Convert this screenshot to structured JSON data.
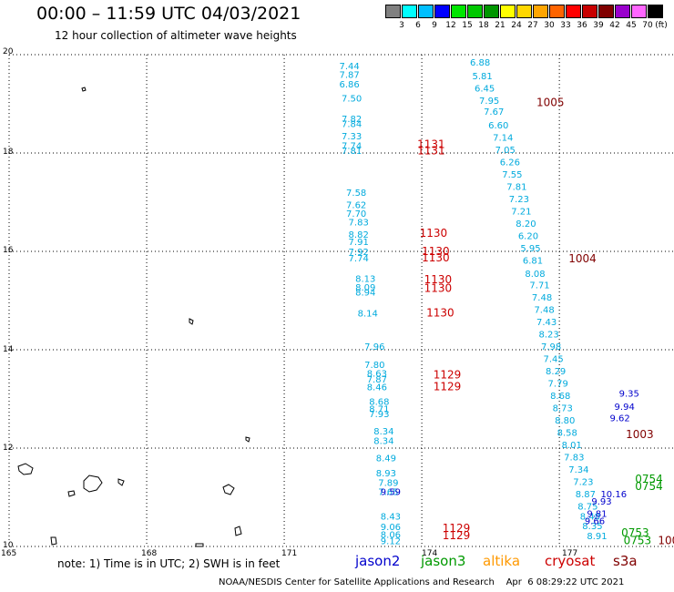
{
  "title": "00:00 – 11:59 UTC 04/03/2021",
  "subtitle": "12 hour collection of altimeter wave heights",
  "legend": {
    "unit": "(ft)",
    "bins": [
      {
        "label": "",
        "color": "#808080"
      },
      {
        "label": "3",
        "color": "#00ffff"
      },
      {
        "label": "6",
        "color": "#00bfff"
      },
      {
        "label": "9",
        "color": "#0000ff"
      },
      {
        "label": "12",
        "color": "#00e600"
      },
      {
        "label": "15",
        "color": "#00c800"
      },
      {
        "label": "18",
        "color": "#009600"
      },
      {
        "label": "21",
        "color": "#ffff00"
      },
      {
        "label": "24",
        "color": "#ffd700"
      },
      {
        "label": "27",
        "color": "#ffa500"
      },
      {
        "label": "30",
        "color": "#ff6400"
      },
      {
        "label": "33",
        "color": "#ff0000"
      },
      {
        "label": "36",
        "color": "#c80000"
      },
      {
        "label": "39",
        "color": "#800000"
      },
      {
        "label": "42",
        "color": "#9900cc"
      },
      {
        "label": "45",
        "color": "#ff66ff"
      },
      {
        "label": "70",
        "color": "#000000"
      }
    ]
  },
  "axes": {
    "lat_labels": [
      "20",
      "18",
      "16",
      "14",
      "12",
      "10"
    ],
    "lon_labels": [
      "165",
      "168",
      "171",
      "174",
      "177"
    ],
    "lat_range": [
      10,
      20
    ],
    "lon_range": [
      165,
      179.5
    ]
  },
  "colors": {
    "jason2": "#0000cc",
    "jason3": "#009900",
    "altika": "#ff9900",
    "cryosat": "#cc0000",
    "s3a": "#800000",
    "swh": "#00aadd"
  },
  "tracks": [
    {
      "id": "track-a",
      "color": "#00aadd",
      "points": [
        {
          "lon": 172.2,
          "lat": 19.7,
          "swh": "7.44"
        },
        {
          "lon": 172.2,
          "lat": 19.53,
          "swh": "7.87"
        },
        {
          "lon": 172.2,
          "lat": 19.33,
          "swh": "6.86"
        },
        {
          "lon": 172.25,
          "lat": 19.05,
          "swh": "7.50"
        },
        {
          "lon": 172.25,
          "lat": 18.63,
          "swh": "7.82"
        },
        {
          "lon": 172.25,
          "lat": 18.53,
          "swh": "7.84"
        },
        {
          "lon": 172.25,
          "lat": 18.28,
          "swh": "7.33"
        },
        {
          "lon": 172.25,
          "lat": 18.08,
          "swh": "7.74"
        },
        {
          "lon": 172.25,
          "lat": 17.98,
          "swh": "7.81"
        },
        {
          "lon": 172.35,
          "lat": 17.13,
          "swh": "7.58"
        },
        {
          "lon": 172.35,
          "lat": 16.88,
          "swh": "7.62"
        },
        {
          "lon": 172.35,
          "lat": 16.7,
          "swh": "7.70"
        },
        {
          "lon": 172.4,
          "lat": 16.53,
          "swh": "7.83"
        },
        {
          "lon": 172.4,
          "lat": 16.28,
          "swh": "8.82"
        },
        {
          "lon": 172.4,
          "lat": 16.13,
          "swh": "7.91"
        },
        {
          "lon": 172.4,
          "lat": 15.93,
          "swh": "7.92"
        },
        {
          "lon": 172.4,
          "lat": 15.8,
          "swh": "7.74"
        },
        {
          "lon": 172.55,
          "lat": 15.38,
          "swh": "8.13"
        },
        {
          "lon": 172.55,
          "lat": 15.2,
          "swh": "8.09"
        },
        {
          "lon": 172.55,
          "lat": 15.1,
          "swh": "8.94"
        },
        {
          "lon": 172.6,
          "lat": 14.68,
          "swh": "8.14"
        },
        {
          "lon": 172.75,
          "lat": 14.0,
          "swh": "7.96"
        },
        {
          "lon": 172.75,
          "lat": 13.63,
          "swh": "7.80"
        },
        {
          "lon": 172.8,
          "lat": 13.45,
          "swh": "8.63"
        },
        {
          "lon": 172.8,
          "lat": 13.33,
          "swh": "7.87"
        },
        {
          "lon": 172.8,
          "lat": 13.18,
          "swh": "8.46"
        },
        {
          "lon": 172.85,
          "lat": 12.88,
          "swh": "8.68"
        },
        {
          "lon": 172.85,
          "lat": 12.73,
          "swh": "8.71"
        },
        {
          "lon": 172.85,
          "lat": 12.63,
          "swh": "7.93"
        },
        {
          "lon": 172.95,
          "lat": 12.28,
          "swh": "8.34"
        },
        {
          "lon": 172.95,
          "lat": 12.08,
          "swh": "8.34"
        },
        {
          "lon": 173.0,
          "lat": 11.73,
          "swh": "8.49"
        },
        {
          "lon": 173.0,
          "lat": 11.43,
          "swh": "8.93"
        },
        {
          "lon": 173.05,
          "lat": 11.23,
          "swh": "7.89"
        },
        {
          "lon": 173.05,
          "lat": 11.05,
          "swh": "7.65"
        },
        {
          "lon": 173.1,
          "lat": 10.55,
          "swh": "8.43"
        },
        {
          "lon": 173.1,
          "lat": 10.33,
          "swh": "9.06"
        },
        {
          "lon": 173.1,
          "lat": 10.18,
          "swh": "8.06"
        },
        {
          "lon": 173.1,
          "lat": 10.05,
          "swh": "9.12"
        }
      ]
    },
    {
      "id": "track-b",
      "color": "#00aadd",
      "points": [
        {
          "lon": 175.05,
          "lat": 19.78,
          "swh": "6.88"
        },
        {
          "lon": 175.1,
          "lat": 19.5,
          "swh": "5.81"
        },
        {
          "lon": 175.15,
          "lat": 19.25,
          "swh": "6.45"
        },
        {
          "lon": 175.25,
          "lat": 19.0,
          "swh": "7.95"
        },
        {
          "lon": 175.35,
          "lat": 18.78,
          "swh": "7.67"
        },
        {
          "lon": 175.45,
          "lat": 18.5,
          "swh": "6.60"
        },
        {
          "lon": 175.55,
          "lat": 18.25,
          "swh": "7.14"
        },
        {
          "lon": 175.6,
          "lat": 18.0,
          "swh": "7.05"
        },
        {
          "lon": 175.7,
          "lat": 17.75,
          "swh": "6.26"
        },
        {
          "lon": 175.75,
          "lat": 17.5,
          "swh": "7.55"
        },
        {
          "lon": 175.85,
          "lat": 17.25,
          "swh": "7.81"
        },
        {
          "lon": 175.9,
          "lat": 17.0,
          "swh": "7.23"
        },
        {
          "lon": 175.95,
          "lat": 16.75,
          "swh": "7.21"
        },
        {
          "lon": 176.05,
          "lat": 16.5,
          "swh": "8.20"
        },
        {
          "lon": 176.1,
          "lat": 16.25,
          "swh": "6.20"
        },
        {
          "lon": 176.15,
          "lat": 16.0,
          "swh": "5.95"
        },
        {
          "lon": 176.2,
          "lat": 15.75,
          "swh": "6.81"
        },
        {
          "lon": 176.25,
          "lat": 15.48,
          "swh": "8.08"
        },
        {
          "lon": 176.35,
          "lat": 15.25,
          "swh": "7.71"
        },
        {
          "lon": 176.4,
          "lat": 15.0,
          "swh": "7.48"
        },
        {
          "lon": 176.45,
          "lat": 14.75,
          "swh": "7.48"
        },
        {
          "lon": 176.5,
          "lat": 14.5,
          "swh": "7.43"
        },
        {
          "lon": 176.55,
          "lat": 14.25,
          "swh": "8.23"
        },
        {
          "lon": 176.6,
          "lat": 14.0,
          "swh": "7.98"
        },
        {
          "lon": 176.65,
          "lat": 13.75,
          "swh": "7.45"
        },
        {
          "lon": 176.7,
          "lat": 13.5,
          "swh": "8.29"
        },
        {
          "lon": 176.75,
          "lat": 13.25,
          "swh": "7.79"
        },
        {
          "lon": 176.8,
          "lat": 13.0,
          "swh": "8.68"
        },
        {
          "lon": 176.85,
          "lat": 12.75,
          "swh": "8.73"
        },
        {
          "lon": 176.9,
          "lat": 12.5,
          "swh": "8.80"
        },
        {
          "lon": 176.95,
          "lat": 12.25,
          "swh": "8.58"
        },
        {
          "lon": 177.05,
          "lat": 12.0,
          "swh": "8.01"
        },
        {
          "lon": 177.1,
          "lat": 11.75,
          "swh": "7.83"
        },
        {
          "lon": 177.2,
          "lat": 11.5,
          "swh": "7.34"
        },
        {
          "lon": 177.3,
          "lat": 11.25,
          "swh": "7.23"
        },
        {
          "lon": 177.35,
          "lat": 11.0,
          "swh": "8.87"
        },
        {
          "lon": 177.4,
          "lat": 10.75,
          "swh": "8.75"
        },
        {
          "lon": 177.45,
          "lat": 10.55,
          "swh": "8.48"
        },
        {
          "lon": 177.5,
          "lat": 10.35,
          "swh": "8.35"
        },
        {
          "lon": 177.6,
          "lat": 10.15,
          "swh": "8.91"
        }
      ]
    },
    {
      "id": "track-c",
      "color": "#0000cc",
      "points": [
        {
          "lon": 178.3,
          "lat": 13.05,
          "swh": "9.35"
        },
        {
          "lon": 178.2,
          "lat": 12.78,
          "swh": "9.94"
        },
        {
          "lon": 178.1,
          "lat": 12.55,
          "swh": "9.62"
        },
        {
          "lon": 177.9,
          "lat": 11.0,
          "swh": "10.16"
        },
        {
          "lon": 177.7,
          "lat": 10.85,
          "swh": "9.93"
        },
        {
          "lon": 177.6,
          "lat": 10.6,
          "swh": "9.81"
        },
        {
          "lon": 177.55,
          "lat": 10.45,
          "swh": "9.66"
        },
        {
          "lon": 173.1,
          "lat": 11.05,
          "swh": "9.59"
        }
      ]
    }
  ],
  "time_labels": [
    {
      "lon": 173.9,
      "lat": 18.1,
      "text": "1131",
      "color": "#cc0000"
    },
    {
      "lon": 173.9,
      "lat": 17.97,
      "text": "1131",
      "color": "#cc0000"
    },
    {
      "lon": 173.95,
      "lat": 16.3,
      "text": "1130",
      "color": "#cc0000"
    },
    {
      "lon": 174.0,
      "lat": 15.93,
      "text": "1130",
      "color": "#cc0000"
    },
    {
      "lon": 174.0,
      "lat": 15.8,
      "text": "1130",
      "color": "#cc0000"
    },
    {
      "lon": 174.05,
      "lat": 15.35,
      "text": "1130",
      "color": "#cc0000"
    },
    {
      "lon": 174.05,
      "lat": 15.18,
      "text": "1130",
      "color": "#cc0000"
    },
    {
      "lon": 174.1,
      "lat": 14.68,
      "text": "1130",
      "color": "#cc0000"
    },
    {
      "lon": 174.25,
      "lat": 13.42,
      "text": "1129",
      "color": "#cc0000"
    },
    {
      "lon": 174.25,
      "lat": 13.18,
      "text": "1129",
      "color": "#cc0000"
    },
    {
      "lon": 174.45,
      "lat": 10.3,
      "text": "1129",
      "color": "#cc0000"
    },
    {
      "lon": 174.45,
      "lat": 10.15,
      "text": "1129",
      "color": "#cc0000"
    },
    {
      "lon": 176.5,
      "lat": 18.95,
      "text": "1005",
      "color": "#800000"
    },
    {
      "lon": 177.2,
      "lat": 15.78,
      "text": "1004",
      "color": "#800000"
    },
    {
      "lon": 178.45,
      "lat": 12.2,
      "text": "1003",
      "color": "#800000"
    },
    {
      "lon": 178.65,
      "lat": 11.3,
      "text": "0754",
      "color": "#009900"
    },
    {
      "lon": 178.65,
      "lat": 11.15,
      "text": "0754",
      "color": "#009900"
    },
    {
      "lon": 178.35,
      "lat": 10.2,
      "text": "0753",
      "color": "#009900"
    },
    {
      "lon": 178.4,
      "lat": 10.05,
      "text": "0753",
      "color": "#009900"
    },
    {
      "lon": 179.15,
      "lat": 10.05,
      "text": "100",
      "color": "#800000"
    }
  ],
  "note": "note:  1) Time is in UTC;  2) SWH is in feet",
  "satellites": [
    {
      "name": "jason2",
      "color": "#0000cc"
    },
    {
      "name": "jason3",
      "color": "#009900"
    },
    {
      "name": "altika",
      "color": "#ff9900"
    },
    {
      "name": "cryosat",
      "color": "#cc0000"
    },
    {
      "name": "s3a",
      "color": "#800000"
    }
  ],
  "credit": "NOAA/NESDIS Center for Satellite Applications and Research    Apr  6 08:29:22 UTC 2021"
}
